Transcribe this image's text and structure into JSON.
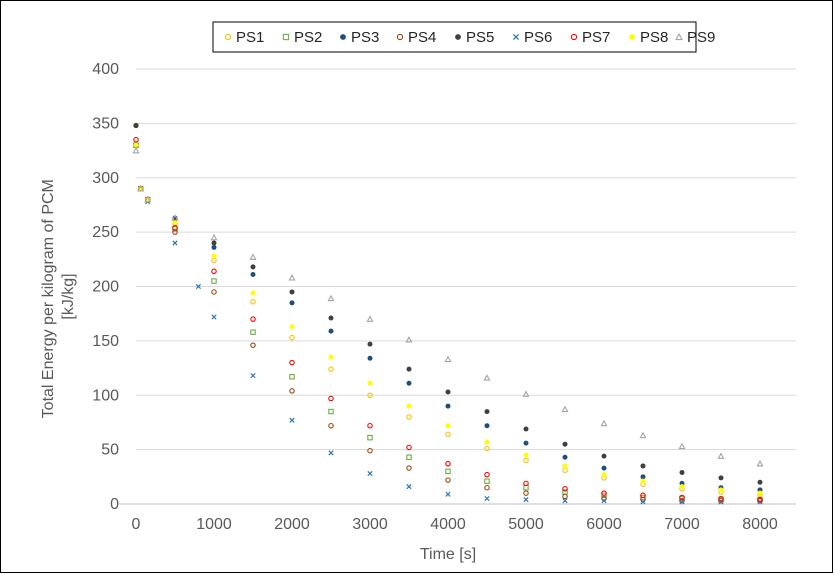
{
  "chart_data": {
    "type": "scatter",
    "xlabel": "Time [s]",
    "ylabel_lines": [
      "Total Energy per kilogram of PCM",
      "[kJ/kg]"
    ],
    "xlim": [
      0,
      8000
    ],
    "ylim": [
      0,
      400
    ],
    "x_ticks": [
      0,
      1000,
      2000,
      3000,
      4000,
      5000,
      6000,
      7000,
      8000
    ],
    "y_ticks": [
      0,
      50,
      100,
      150,
      200,
      250,
      300,
      350,
      400
    ],
    "grid": "horizontal",
    "legend_position": "top",
    "series": [
      {
        "name": "PS1",
        "color": "#FFC000",
        "marker": "circle-open",
        "points": [
          [
            0,
            348
          ],
          [
            60,
            290
          ],
          [
            150,
            280
          ],
          [
            500,
            258
          ],
          [
            1000,
            224
          ],
          [
            1500,
            186
          ],
          [
            2000,
            153
          ],
          [
            2500,
            124
          ],
          [
            3000,
            100
          ],
          [
            3500,
            80
          ],
          [
            4000,
            64
          ],
          [
            4500,
            51
          ],
          [
            5000,
            40
          ],
          [
            5500,
            31
          ],
          [
            6000,
            24
          ],
          [
            6500,
            18
          ],
          [
            7000,
            14
          ],
          [
            7500,
            11
          ],
          [
            8000,
            9
          ]
        ]
      },
      {
        "name": "PS2",
        "color": "#70AD47",
        "marker": "square-open",
        "points": [
          [
            0,
            330
          ],
          [
            60,
            290
          ],
          [
            150,
            280
          ],
          [
            500,
            253
          ],
          [
            1000,
            205
          ],
          [
            1500,
            158
          ],
          [
            2000,
            117
          ],
          [
            2500,
            85
          ],
          [
            3000,
            61
          ],
          [
            3500,
            43
          ],
          [
            4000,
            30
          ],
          [
            4500,
            21
          ],
          [
            5000,
            15
          ],
          [
            5500,
            11
          ],
          [
            6000,
            8
          ],
          [
            6500,
            6
          ],
          [
            7000,
            5
          ],
          [
            7500,
            4
          ],
          [
            8000,
            4
          ]
        ]
      },
      {
        "name": "PS3",
        "color": "#1F4E79",
        "marker": "dot",
        "points": [
          [
            0,
            348
          ],
          [
            60,
            290
          ],
          [
            150,
            280
          ],
          [
            500,
            262
          ],
          [
            1000,
            236
          ],
          [
            1500,
            211
          ],
          [
            2000,
            185
          ],
          [
            2500,
            159
          ],
          [
            3000,
            134
          ],
          [
            3500,
            111
          ],
          [
            4000,
            90
          ],
          [
            4500,
            72
          ],
          [
            5000,
            56
          ],
          [
            5500,
            43
          ],
          [
            6000,
            33
          ],
          [
            6500,
            25
          ],
          [
            7000,
            19
          ],
          [
            7500,
            15
          ],
          [
            8000,
            13
          ]
        ]
      },
      {
        "name": "PS4",
        "color": "#9E480E",
        "marker": "circle-open",
        "points": [
          [
            0,
            330
          ],
          [
            60,
            290
          ],
          [
            150,
            280
          ],
          [
            500,
            250
          ],
          [
            1000,
            195
          ],
          [
            1500,
            146
          ],
          [
            2000,
            104
          ],
          [
            2500,
            72
          ],
          [
            3000,
            49
          ],
          [
            3500,
            33
          ],
          [
            4000,
            22
          ],
          [
            4500,
            15
          ],
          [
            5000,
            10
          ],
          [
            5500,
            7
          ],
          [
            6000,
            5
          ],
          [
            6500,
            4
          ],
          [
            7000,
            3
          ],
          [
            7500,
            3
          ],
          [
            8000,
            3
          ]
        ]
      },
      {
        "name": "PS5",
        "color": "#404040",
        "marker": "dot",
        "points": [
          [
            0,
            348
          ],
          [
            60,
            290
          ],
          [
            150,
            280
          ],
          [
            500,
            263
          ],
          [
            1000,
            240
          ],
          [
            1500,
            218
          ],
          [
            2000,
            195
          ],
          [
            2500,
            171
          ],
          [
            3000,
            147
          ],
          [
            3500,
            124
          ],
          [
            4000,
            103
          ],
          [
            4500,
            85
          ],
          [
            5000,
            69
          ],
          [
            5500,
            55
          ],
          [
            6000,
            44
          ],
          [
            6500,
            35
          ],
          [
            7000,
            29
          ],
          [
            7500,
            24
          ],
          [
            8000,
            20
          ]
        ]
      },
      {
        "name": "PS6",
        "color": "#2E75B6",
        "marker": "x",
        "points": [
          [
            0,
            330
          ],
          [
            60,
            290
          ],
          [
            150,
            278
          ],
          [
            500,
            240
          ],
          [
            800,
            200
          ],
          [
            1000,
            172
          ],
          [
            1500,
            118
          ],
          [
            2000,
            77
          ],
          [
            2500,
            47
          ],
          [
            3000,
            28
          ],
          [
            3500,
            16
          ],
          [
            4000,
            9
          ],
          [
            4500,
            5
          ],
          [
            5000,
            4
          ],
          [
            5500,
            3
          ],
          [
            6000,
            3
          ],
          [
            6500,
            2
          ],
          [
            7000,
            2
          ],
          [
            7500,
            2
          ],
          [
            8000,
            2
          ]
        ]
      },
      {
        "name": "PS7",
        "color": "#FF0000",
        "marker": "circle-open",
        "points": [
          [
            0,
            335
          ],
          [
            60,
            290
          ],
          [
            150,
            280
          ],
          [
            500,
            254
          ],
          [
            1000,
            214
          ],
          [
            1500,
            170
          ],
          [
            2000,
            130
          ],
          [
            2500,
            97
          ],
          [
            3000,
            72
          ],
          [
            3500,
            52
          ],
          [
            4000,
            37
          ],
          [
            4500,
            27
          ],
          [
            5000,
            19
          ],
          [
            5500,
            14
          ],
          [
            6000,
            10
          ],
          [
            6500,
            8
          ],
          [
            7000,
            6
          ],
          [
            7500,
            5
          ],
          [
            8000,
            4
          ]
        ]
      },
      {
        "name": "PS8",
        "color": "#FFFF00",
        "marker": "dot",
        "points": [
          [
            0,
            330
          ],
          [
            60,
            290
          ],
          [
            150,
            280
          ],
          [
            500,
            259
          ],
          [
            1000,
            228
          ],
          [
            1500,
            194
          ],
          [
            2000,
            163
          ],
          [
            2500,
            135
          ],
          [
            3000,
            111
          ],
          [
            3500,
            90
          ],
          [
            4000,
            72
          ],
          [
            4500,
            57
          ],
          [
            5000,
            45
          ],
          [
            5500,
            35
          ],
          [
            6000,
            27
          ],
          [
            6500,
            21
          ],
          [
            7000,
            16
          ],
          [
            7500,
            13
          ],
          [
            8000,
            10
          ]
        ]
      },
      {
        "name": "PS9",
        "color": "#A5A5A5",
        "marker": "triangle-open",
        "points": [
          [
            0,
            325
          ],
          [
            60,
            290
          ],
          [
            150,
            280
          ],
          [
            500,
            263
          ],
          [
            1000,
            245
          ],
          [
            1500,
            227
          ],
          [
            2000,
            208
          ],
          [
            2500,
            189
          ],
          [
            3000,
            170
          ],
          [
            3500,
            151
          ],
          [
            4000,
            133
          ],
          [
            4500,
            116
          ],
          [
            5000,
            101
          ],
          [
            5500,
            87
          ],
          [
            6000,
            74
          ],
          [
            6500,
            63
          ],
          [
            7000,
            53
          ],
          [
            7500,
            44
          ],
          [
            8000,
            37
          ]
        ]
      }
    ]
  }
}
